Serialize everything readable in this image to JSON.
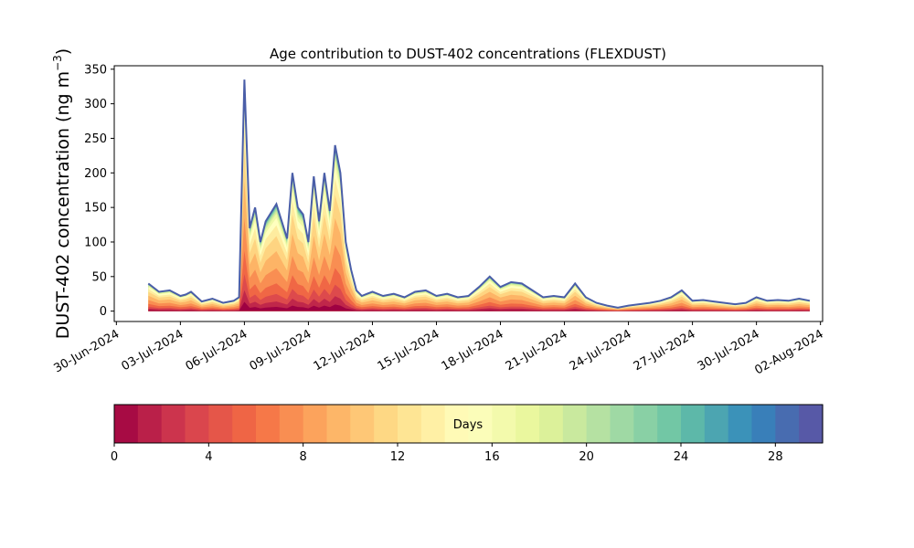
{
  "chart_data": {
    "type": "area",
    "stacked": true,
    "title": "Age contribution to DUST-402 concentrations (FLEXDUST)",
    "ylabel_main": "DUST-402 concentration (ng m",
    "ylabel_sup": "−3",
    "ylabel_close": ")",
    "xlabel": "",
    "ylim": [
      -15,
      355
    ],
    "xlim": [
      "2024-06-30",
      "2024-08-02"
    ],
    "yticks": [
      0,
      50,
      100,
      150,
      200,
      250,
      300,
      350
    ],
    "xticks": [
      "30-Jun-2024",
      "03-Jul-2024",
      "06-Jul-2024",
      "09-Jul-2024",
      "12-Jul-2024",
      "15-Jul-2024",
      "18-Jul-2024",
      "21-Jul-2024",
      "24-Jul-2024",
      "27-Jul-2024",
      "30-Jul-2024",
      "02-Aug-2024"
    ],
    "grid": false,
    "total_series": {
      "x": [
        "2024-07-01 12:00",
        "2024-07-02 00:00",
        "2024-07-02 12:00",
        "2024-07-03 00:00",
        "2024-07-03 06:00",
        "2024-07-03 12:00",
        "2024-07-04 00:00",
        "2024-07-04 12:00",
        "2024-07-05 00:00",
        "2024-07-05 12:00",
        "2024-07-05 18:00",
        "2024-07-06 00:00",
        "2024-07-06 06:00",
        "2024-07-06 12:00",
        "2024-07-06 18:00",
        "2024-07-07 00:00",
        "2024-07-07 12:00",
        "2024-07-08 00:00",
        "2024-07-08 06:00",
        "2024-07-08 12:00",
        "2024-07-08 18:00",
        "2024-07-09 00:00",
        "2024-07-09 06:00",
        "2024-07-09 12:00",
        "2024-07-09 18:00",
        "2024-07-10 00:00",
        "2024-07-10 06:00",
        "2024-07-10 12:00",
        "2024-07-10 18:00",
        "2024-07-11 00:00",
        "2024-07-11 06:00",
        "2024-07-11 12:00",
        "2024-07-11 18:00",
        "2024-07-12 00:00",
        "2024-07-12 12:00",
        "2024-07-13 00:00",
        "2024-07-13 12:00",
        "2024-07-14 00:00",
        "2024-07-14 12:00",
        "2024-07-15 00:00",
        "2024-07-15 12:00",
        "2024-07-16 00:00",
        "2024-07-16 12:00",
        "2024-07-17 00:00",
        "2024-07-17 12:00",
        "2024-07-18 00:00",
        "2024-07-18 12:00",
        "2024-07-19 00:00",
        "2024-07-19 12:00",
        "2024-07-20 00:00",
        "2024-07-20 12:00",
        "2024-07-21 00:00",
        "2024-07-21 12:00",
        "2024-07-22 00:00",
        "2024-07-22 12:00",
        "2024-07-23 00:00",
        "2024-07-23 12:00",
        "2024-07-24 00:00",
        "2024-07-24 12:00",
        "2024-07-25 00:00",
        "2024-07-25 12:00",
        "2024-07-26 00:00",
        "2024-07-26 12:00",
        "2024-07-27 00:00",
        "2024-07-27 12:00",
        "2024-07-28 00:00",
        "2024-07-28 12:00",
        "2024-07-29 00:00",
        "2024-07-29 12:00",
        "2024-07-30 00:00",
        "2024-07-30 12:00",
        "2024-07-31 00:00",
        "2024-07-31 12:00",
        "2024-08-01 00:00",
        "2024-08-01 12:00"
      ],
      "y": [
        40,
        28,
        30,
        22,
        24,
        28,
        14,
        18,
        12,
        15,
        20,
        335,
        120,
        150,
        100,
        130,
        155,
        105,
        200,
        150,
        140,
        100,
        195,
        130,
        200,
        145,
        240,
        200,
        100,
        60,
        30,
        22,
        25,
        28,
        22,
        25,
        20,
        28,
        30,
        22,
        25,
        20,
        22,
        35,
        50,
        35,
        42,
        40,
        30,
        20,
        22,
        20,
        40,
        20,
        12,
        8,
        5,
        8,
        10,
        12,
        15,
        20,
        30,
        15,
        16,
        14,
        12,
        10,
        12,
        20,
        15,
        16,
        15,
        18,
        15
      ]
    },
    "colorbar": {
      "label": "Days",
      "range": [
        0,
        30
      ],
      "levels": 30,
      "ticks": [
        0,
        4,
        8,
        12,
        16,
        20,
        24,
        28
      ],
      "colormap": [
        "#9e0142",
        "#d53e4f",
        "#f46d43",
        "#fdae61",
        "#fee08b",
        "#ffffbf",
        "#e6f598",
        "#abdda4",
        "#66c2a5",
        "#3288bd",
        "#5e4fa2"
      ]
    }
  }
}
